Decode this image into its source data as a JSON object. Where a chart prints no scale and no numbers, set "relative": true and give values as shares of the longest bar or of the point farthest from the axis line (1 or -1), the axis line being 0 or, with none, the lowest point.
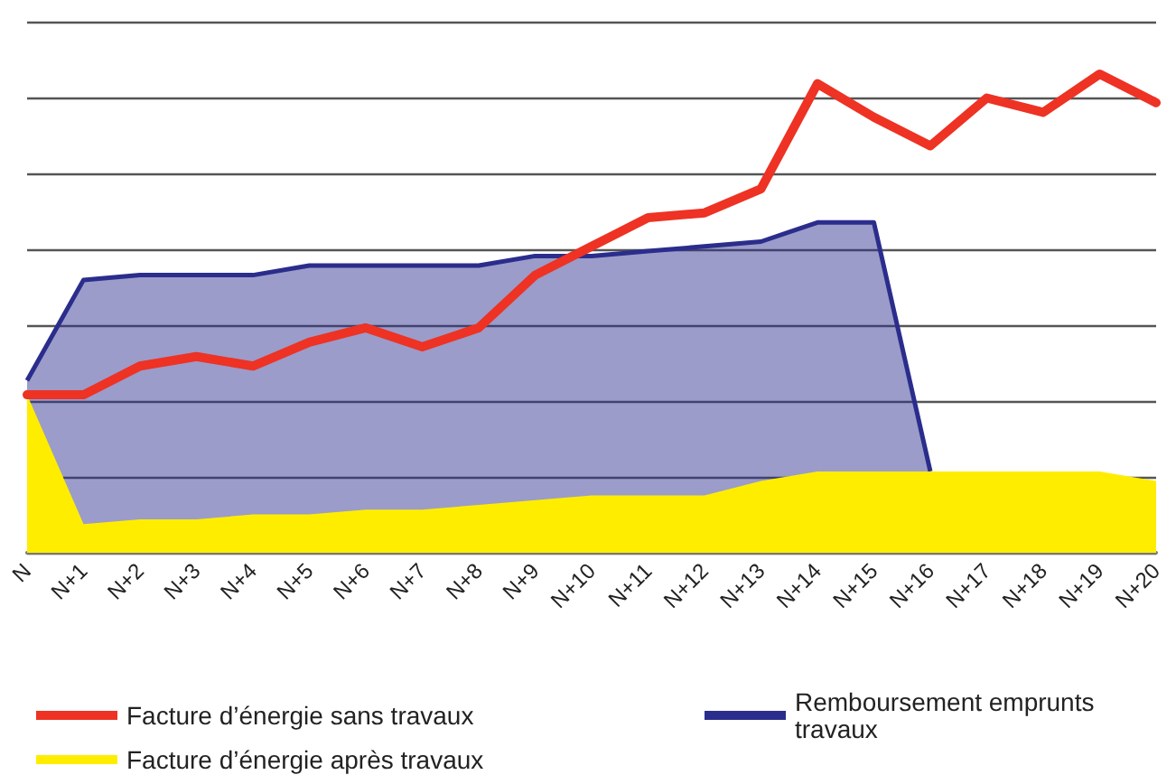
{
  "chart_data": {
    "type": "line",
    "relative": true,
    "grid": true,
    "legend": "bottom",
    "categories": [
      "N",
      "N+1",
      "N+2",
      "N+3",
      "N+4",
      "N+5",
      "N+6",
      "N+7",
      "N+8",
      "N+9",
      "N+10",
      "N+11",
      "N+12",
      "N+13",
      "N+14",
      "N+15",
      "N+16",
      "N+17",
      "N+18",
      "N+19",
      "N+20"
    ],
    "series": [
      {
        "name": "Facture d’énergie sans travaux",
        "color": "#ee3224",
        "values": [
          0.33,
          0.33,
          0.39,
          0.41,
          0.39,
          0.44,
          0.47,
          0.43,
          0.47,
          0.58,
          0.64,
          0.7,
          0.71,
          0.76,
          0.98,
          0.91,
          0.85,
          0.95,
          0.92,
          1,
          0.94
        ]
      },
      {
        "name": "Remboursement emprunts travaux",
        "type": "area",
        "color": "#2b2d8c",
        "values": [
          0.36,
          0.57,
          0.58,
          0.58,
          0.58,
          0.6,
          0.6,
          0.6,
          0.6,
          0.62,
          0.62,
          0.63,
          0.64,
          0.65,
          0.69,
          0.69,
          0.17,
          null,
          null,
          null,
          null
        ]
      },
      {
        "name": "Facture d’énergie après travaux",
        "type": "area",
        "color": "#ffed00",
        "values": [
          0.33,
          0.06,
          0.07,
          0.07,
          0.08,
          0.08,
          0.09,
          0.09,
          0.1,
          0.11,
          0.12,
          0.12,
          0.12,
          0.15,
          0.17,
          0.17,
          0.17,
          0.17,
          0.17,
          0.17,
          0.15
        ]
      }
    ]
  }
}
